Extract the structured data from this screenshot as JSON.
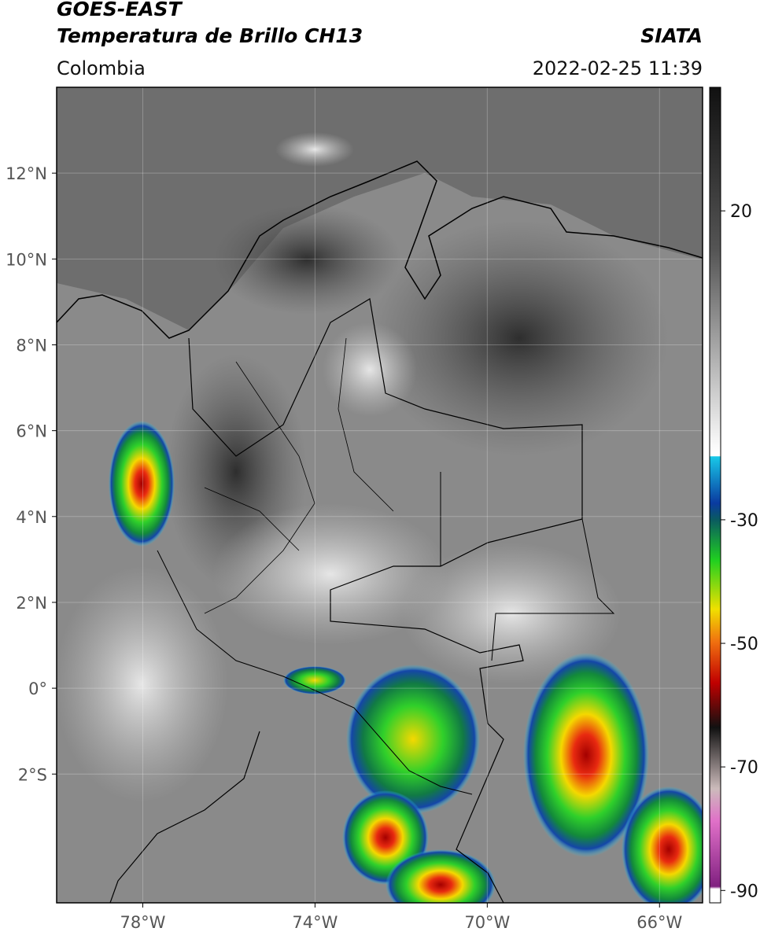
{
  "header": {
    "title": "GOES-EAST",
    "subtitle": "Temperatura de Brillo CH13",
    "source": "SIATA",
    "region": "Colombia",
    "timestamp": "2022-02-25 11:39"
  },
  "map": {
    "xlim": [
      -80,
      -65
    ],
    "ylim": [
      -5,
      14
    ],
    "xticks": [
      {
        "value": -78,
        "label": "78°W"
      },
      {
        "value": -74,
        "label": "74°W"
      },
      {
        "value": -70,
        "label": "70°W"
      },
      {
        "value": -66,
        "label": "66°W"
      }
    ],
    "yticks": [
      {
        "value": 12,
        "label": "12°N"
      },
      {
        "value": 10,
        "label": "10°N"
      },
      {
        "value": 8,
        "label": "8°N"
      },
      {
        "value": 6,
        "label": "6°N"
      },
      {
        "value": 4,
        "label": "4°N"
      },
      {
        "value": 2,
        "label": "2°N"
      },
      {
        "value": 0,
        "label": "0°"
      },
      {
        "value": -2,
        "label": "2°S"
      }
    ],
    "grid": true
  },
  "colorbar": {
    "lim": [
      -92,
      40
    ],
    "ticks": [
      20,
      -30,
      -50,
      -70,
      -90
    ]
  }
}
